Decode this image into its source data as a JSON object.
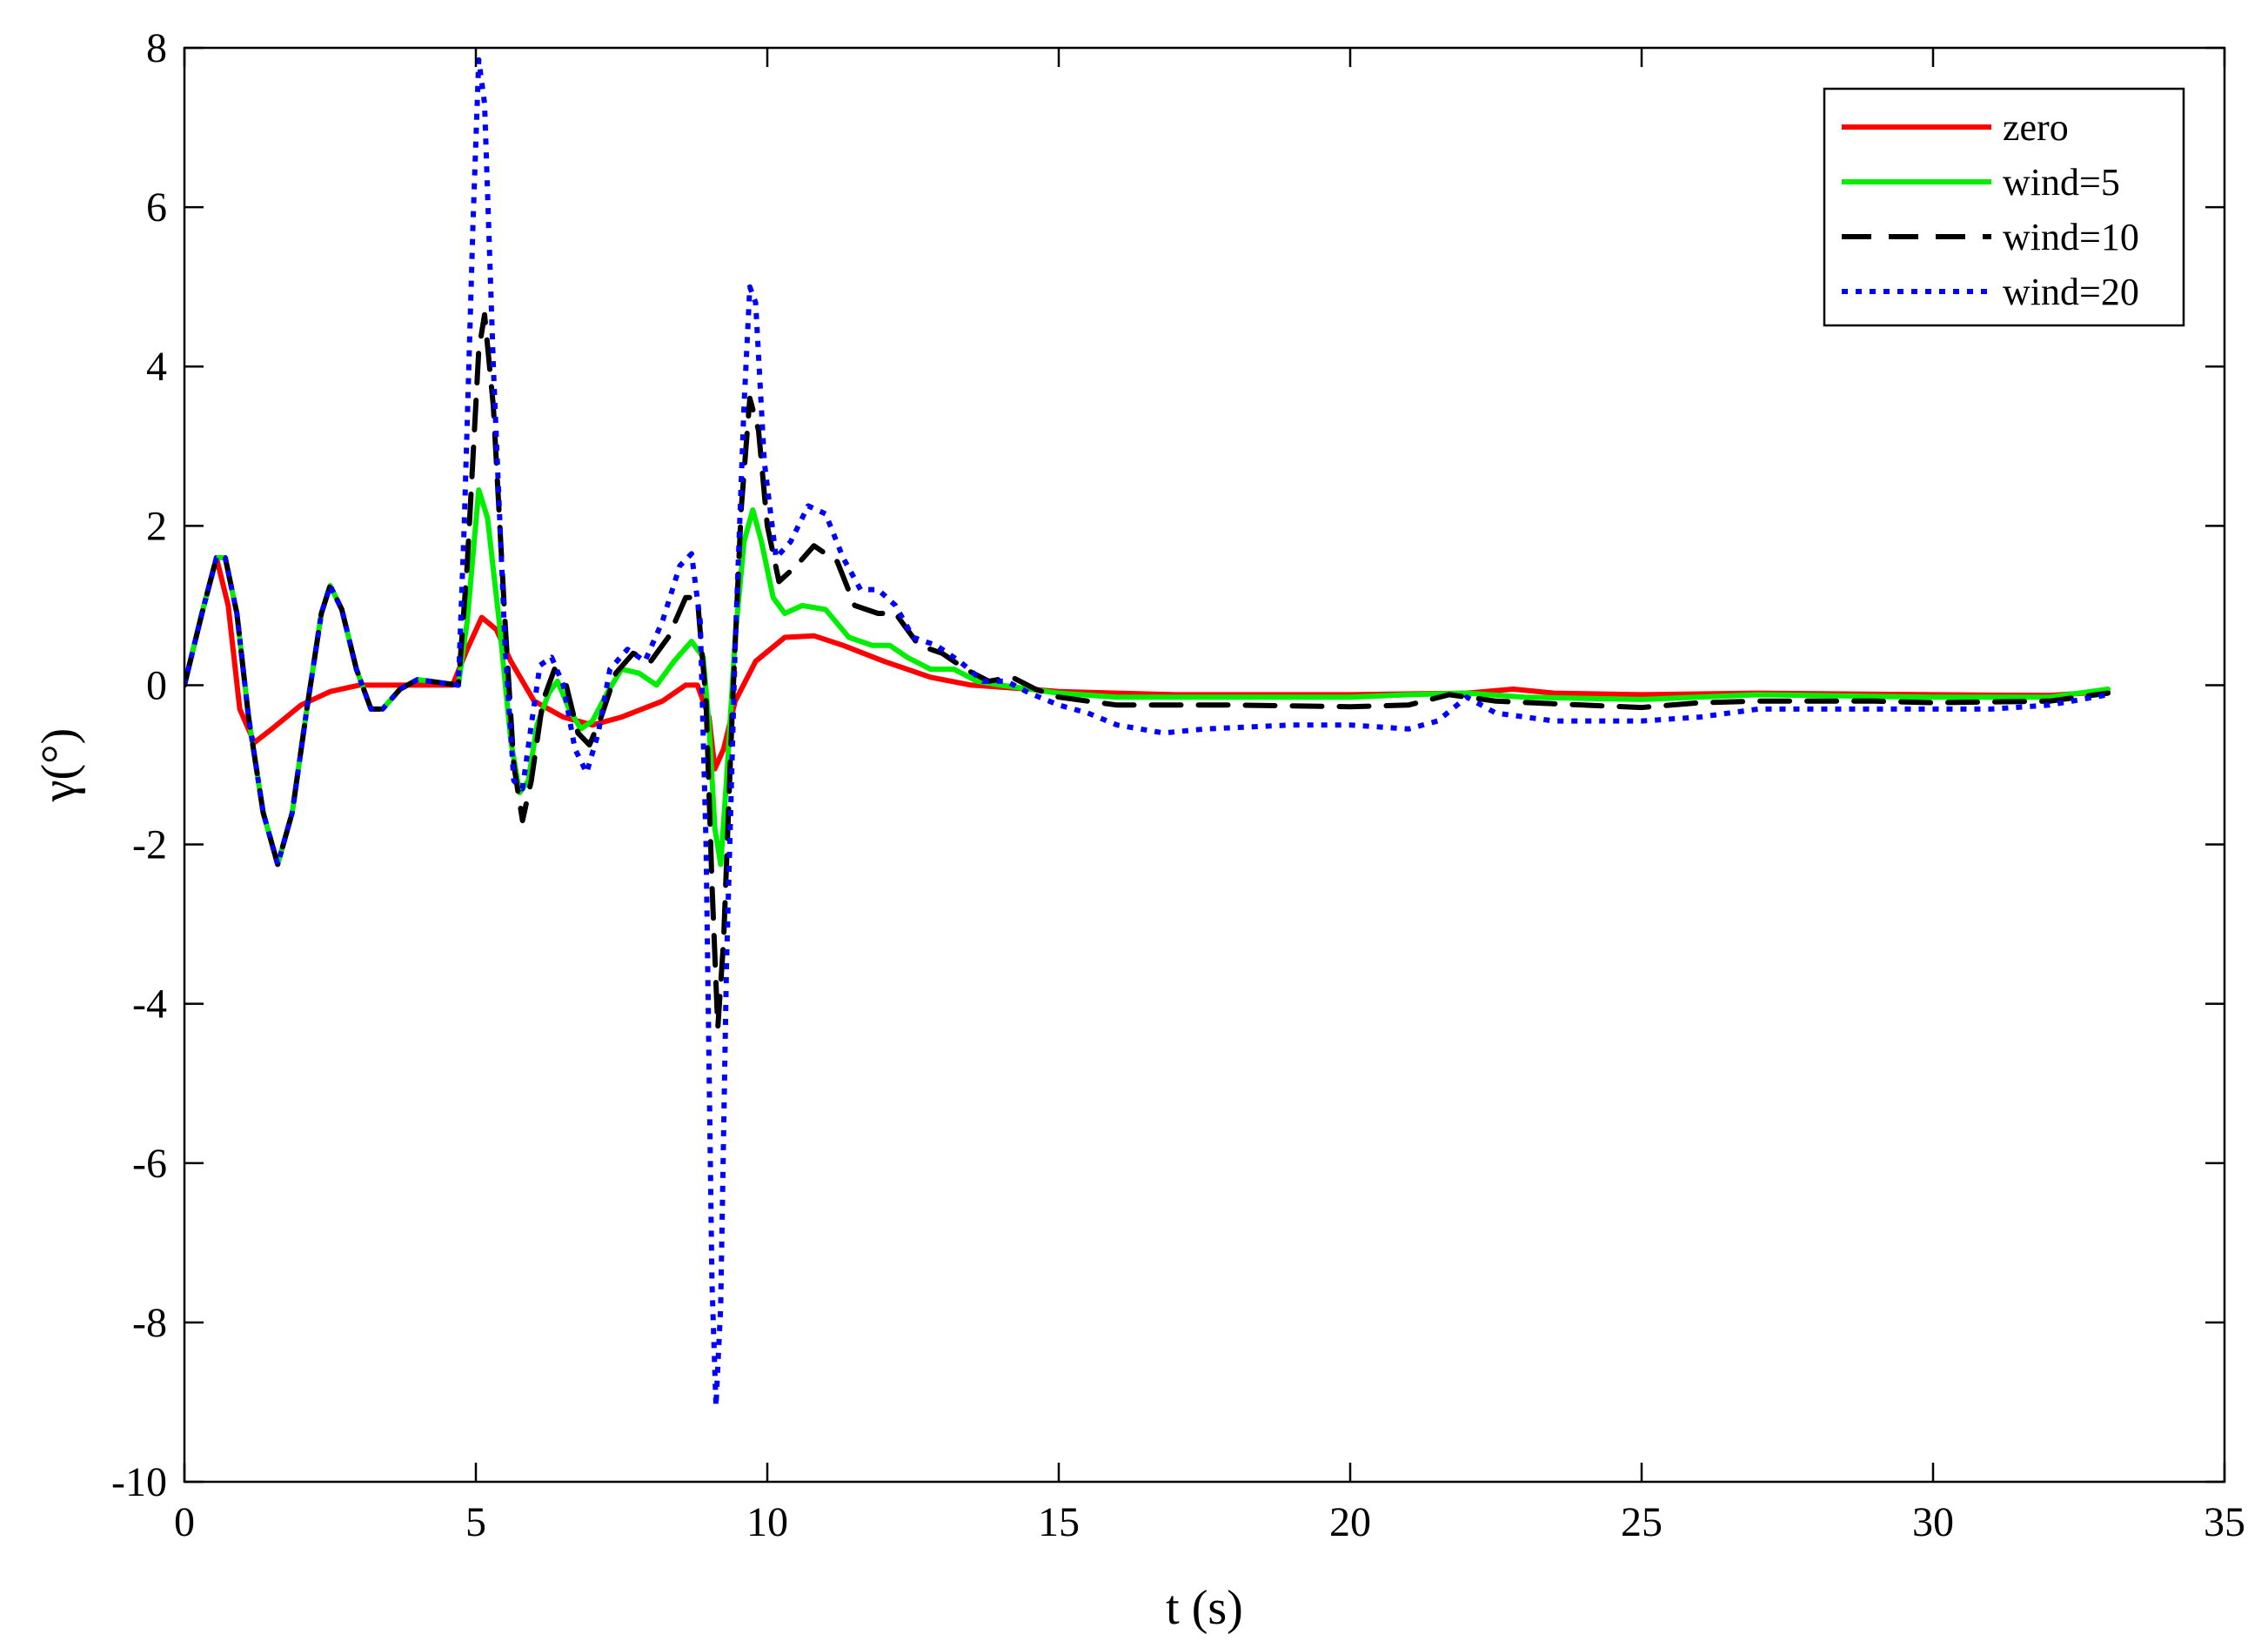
{
  "chart_data": {
    "type": "line",
    "title": "",
    "xlabel": "t (s)",
    "ylabel": "γ(°)",
    "xlim": [
      0,
      35
    ],
    "ylim": [
      -10,
      8
    ],
    "xticks": [
      0,
      5,
      10,
      15,
      20,
      25,
      30,
      35
    ],
    "yticks": [
      -10,
      -8,
      -6,
      -4,
      -2,
      0,
      2,
      4,
      6,
      8
    ],
    "grid": false,
    "legend_position": "top-right",
    "series": [
      {
        "name": "zero",
        "color": "#ff0000",
        "style": "solid",
        "points": [
          [
            0,
            0
          ],
          [
            0.3,
            0.9
          ],
          [
            0.55,
            1.6
          ],
          [
            0.75,
            1.0
          ],
          [
            0.95,
            -0.3
          ],
          [
            1.2,
            -0.72
          ],
          [
            1.5,
            -0.55
          ],
          [
            2.0,
            -0.25
          ],
          [
            2.5,
            -0.08
          ],
          [
            3.0,
            0.0
          ],
          [
            4.0,
            0.0
          ],
          [
            4.6,
            0.0
          ],
          [
            4.85,
            0.45
          ],
          [
            5.1,
            0.85
          ],
          [
            5.35,
            0.7
          ],
          [
            5.6,
            0.3
          ],
          [
            6.0,
            -0.2
          ],
          [
            6.5,
            -0.4
          ],
          [
            7.0,
            -0.5
          ],
          [
            7.5,
            -0.4
          ],
          [
            8.2,
            -0.2
          ],
          [
            8.6,
            0.0
          ],
          [
            8.8,
            0.0
          ],
          [
            9.0,
            -0.4
          ],
          [
            9.1,
            -1.05
          ],
          [
            9.25,
            -0.8
          ],
          [
            9.45,
            -0.2
          ],
          [
            9.8,
            0.3
          ],
          [
            10.3,
            0.6
          ],
          [
            10.8,
            0.62
          ],
          [
            11.3,
            0.5
          ],
          [
            12.0,
            0.3
          ],
          [
            12.8,
            0.1
          ],
          [
            13.5,
            0.0
          ],
          [
            14.5,
            -0.05
          ],
          [
            15,
            -0.08
          ],
          [
            17,
            -0.12
          ],
          [
            20,
            -0.12
          ],
          [
            22,
            -0.1
          ],
          [
            22.8,
            -0.05
          ],
          [
            23.5,
            -0.1
          ],
          [
            25,
            -0.12
          ],
          [
            27,
            -0.1
          ],
          [
            30,
            -0.12
          ],
          [
            32,
            -0.13
          ],
          [
            33,
            -0.08
          ]
        ]
      },
      {
        "name": "wind=5",
        "color": "#00ee00",
        "style": "solid",
        "points": [
          [
            0,
            0
          ],
          [
            0.3,
            0.9
          ],
          [
            0.55,
            1.6
          ],
          [
            0.7,
            1.6
          ],
          [
            0.9,
            0.9
          ],
          [
            1.1,
            -0.4
          ],
          [
            1.35,
            -1.6
          ],
          [
            1.6,
            -2.25
          ],
          [
            1.85,
            -1.6
          ],
          [
            2.1,
            -0.3
          ],
          [
            2.35,
            0.9
          ],
          [
            2.5,
            1.25
          ],
          [
            2.7,
            0.95
          ],
          [
            2.95,
            0.2
          ],
          [
            3.2,
            -0.3
          ],
          [
            3.4,
            -0.3
          ],
          [
            3.7,
            -0.05
          ],
          [
            4.0,
            0.07
          ],
          [
            4.4,
            0.03
          ],
          [
            4.7,
            0.0
          ],
          [
            4.85,
            0.8
          ],
          [
            5.05,
            2.45
          ],
          [
            5.2,
            2.1
          ],
          [
            5.4,
            0.8
          ],
          [
            5.6,
            -0.7
          ],
          [
            5.75,
            -1.35
          ],
          [
            5.9,
            -1.2
          ],
          [
            6.05,
            -0.5
          ],
          [
            6.25,
            -0.1
          ],
          [
            6.4,
            0.05
          ],
          [
            6.6,
            -0.3
          ],
          [
            6.8,
            -0.55
          ],
          [
            7.0,
            -0.45
          ],
          [
            7.25,
            -0.1
          ],
          [
            7.5,
            0.2
          ],
          [
            7.8,
            0.15
          ],
          [
            8.1,
            0.0
          ],
          [
            8.4,
            0.3
          ],
          [
            8.7,
            0.55
          ],
          [
            8.9,
            0.35
          ],
          [
            9.0,
            -0.5
          ],
          [
            9.1,
            -1.8
          ],
          [
            9.2,
            -2.25
          ],
          [
            9.3,
            -1.2
          ],
          [
            9.45,
            0.6
          ],
          [
            9.6,
            1.8
          ],
          [
            9.75,
            2.2
          ],
          [
            9.9,
            1.8
          ],
          [
            10.1,
            1.1
          ],
          [
            10.3,
            0.9
          ],
          [
            10.6,
            1.0
          ],
          [
            11.0,
            0.95
          ],
          [
            11.4,
            0.6
          ],
          [
            11.8,
            0.5
          ],
          [
            12.1,
            0.5
          ],
          [
            12.4,
            0.35
          ],
          [
            12.8,
            0.2
          ],
          [
            13.2,
            0.2
          ],
          [
            13.6,
            0.05
          ],
          [
            14.0,
            0.0
          ],
          [
            14.5,
            -0.05
          ],
          [
            15,
            -0.1
          ],
          [
            16,
            -0.15
          ],
          [
            18,
            -0.15
          ],
          [
            20,
            -0.15
          ],
          [
            21,
            -0.12
          ],
          [
            22,
            -0.1
          ],
          [
            23,
            -0.15
          ],
          [
            25,
            -0.18
          ],
          [
            27,
            -0.12
          ],
          [
            30,
            -0.15
          ],
          [
            32,
            -0.15
          ],
          [
            33,
            -0.05
          ]
        ]
      },
      {
        "name": "wind=10",
        "color": "#000000",
        "style": "dashed",
        "points": [
          [
            0,
            0
          ],
          [
            0.3,
            0.9
          ],
          [
            0.55,
            1.6
          ],
          [
            0.7,
            1.6
          ],
          [
            0.9,
            0.9
          ],
          [
            1.1,
            -0.4
          ],
          [
            1.35,
            -1.6
          ],
          [
            1.6,
            -2.25
          ],
          [
            1.85,
            -1.6
          ],
          [
            2.1,
            -0.3
          ],
          [
            2.35,
            0.9
          ],
          [
            2.5,
            1.25
          ],
          [
            2.7,
            0.95
          ],
          [
            2.95,
            0.2
          ],
          [
            3.2,
            -0.3
          ],
          [
            3.4,
            -0.3
          ],
          [
            3.7,
            -0.05
          ],
          [
            4.0,
            0.07
          ],
          [
            4.4,
            0.03
          ],
          [
            4.7,
            0.0
          ],
          [
            4.85,
            1.5
          ],
          [
            5.05,
            4.2
          ],
          [
            5.15,
            4.65
          ],
          [
            5.3,
            3.5
          ],
          [
            5.5,
            0.8
          ],
          [
            5.65,
            -1.0
          ],
          [
            5.8,
            -1.7
          ],
          [
            5.95,
            -1.2
          ],
          [
            6.15,
            -0.2
          ],
          [
            6.35,
            0.2
          ],
          [
            6.55,
            0.0
          ],
          [
            6.75,
            -0.6
          ],
          [
            6.95,
            -0.75
          ],
          [
            7.15,
            -0.4
          ],
          [
            7.4,
            0.15
          ],
          [
            7.7,
            0.4
          ],
          [
            8.0,
            0.3
          ],
          [
            8.3,
            0.6
          ],
          [
            8.6,
            1.1
          ],
          [
            8.8,
            1.1
          ],
          [
            8.95,
            -0.2
          ],
          [
            9.05,
            -2.5
          ],
          [
            9.15,
            -4.3
          ],
          [
            9.25,
            -3.2
          ],
          [
            9.4,
            -0.3
          ],
          [
            9.55,
            2.2
          ],
          [
            9.7,
            3.6
          ],
          [
            9.85,
            3.2
          ],
          [
            10.0,
            2.0
          ],
          [
            10.2,
            1.3
          ],
          [
            10.5,
            1.5
          ],
          [
            10.8,
            1.75
          ],
          [
            11.2,
            1.55
          ],
          [
            11.5,
            1.0
          ],
          [
            11.9,
            0.9
          ],
          [
            12.2,
            0.9
          ],
          [
            12.6,
            0.5
          ],
          [
            13.0,
            0.4
          ],
          [
            13.4,
            0.2
          ],
          [
            13.8,
            0.05
          ],
          [
            14.2,
            0.1
          ],
          [
            14.6,
            -0.05
          ],
          [
            15,
            -0.15
          ],
          [
            15.5,
            -0.2
          ],
          [
            16,
            -0.25
          ],
          [
            18,
            -0.25
          ],
          [
            20,
            -0.27
          ],
          [
            21,
            -0.25
          ],
          [
            21.7,
            -0.12
          ],
          [
            22.5,
            -0.2
          ],
          [
            24,
            -0.25
          ],
          [
            25,
            -0.28
          ],
          [
            26,
            -0.22
          ],
          [
            27,
            -0.2
          ],
          [
            29,
            -0.2
          ],
          [
            30,
            -0.22
          ],
          [
            32,
            -0.2
          ],
          [
            33,
            -0.1
          ]
        ]
      },
      {
        "name": "wind=20",
        "color": "#0000ff",
        "style": "dotted",
        "points": [
          [
            0,
            0
          ],
          [
            0.3,
            0.9
          ],
          [
            0.55,
            1.6
          ],
          [
            0.7,
            1.6
          ],
          [
            0.9,
            0.9
          ],
          [
            1.1,
            -0.4
          ],
          [
            1.35,
            -1.6
          ],
          [
            1.6,
            -2.25
          ],
          [
            1.85,
            -1.6
          ],
          [
            2.1,
            -0.3
          ],
          [
            2.35,
            0.9
          ],
          [
            2.5,
            1.25
          ],
          [
            2.7,
            0.95
          ],
          [
            2.95,
            0.2
          ],
          [
            3.2,
            -0.3
          ],
          [
            3.4,
            -0.3
          ],
          [
            3.7,
            -0.05
          ],
          [
            4.0,
            0.07
          ],
          [
            4.4,
            0.03
          ],
          [
            4.7,
            0.0
          ],
          [
            4.8,
            2.0
          ],
          [
            4.95,
            5.8
          ],
          [
            5.05,
            7.85
          ],
          [
            5.15,
            7.3
          ],
          [
            5.3,
            4.0
          ],
          [
            5.5,
            0.5
          ],
          [
            5.65,
            -1.2
          ],
          [
            5.8,
            -1.3
          ],
          [
            5.95,
            -0.5
          ],
          [
            6.1,
            0.25
          ],
          [
            6.3,
            0.35
          ],
          [
            6.5,
            0.0
          ],
          [
            6.7,
            -0.8
          ],
          [
            6.9,
            -1.1
          ],
          [
            7.1,
            -0.6
          ],
          [
            7.3,
            0.2
          ],
          [
            7.6,
            0.45
          ],
          [
            7.9,
            0.3
          ],
          [
            8.2,
            0.8
          ],
          [
            8.5,
            1.5
          ],
          [
            8.7,
            1.65
          ],
          [
            8.85,
            0.8
          ],
          [
            8.95,
            -2.0
          ],
          [
            9.05,
            -7.5
          ],
          [
            9.12,
            -9.05
          ],
          [
            9.2,
            -7.8
          ],
          [
            9.3,
            -3.5
          ],
          [
            9.45,
            0.5
          ],
          [
            9.6,
            3.5
          ],
          [
            9.7,
            5.0
          ],
          [
            9.8,
            4.8
          ],
          [
            9.95,
            2.8
          ],
          [
            10.15,
            1.6
          ],
          [
            10.4,
            1.8
          ],
          [
            10.7,
            2.25
          ],
          [
            11.0,
            2.15
          ],
          [
            11.3,
            1.6
          ],
          [
            11.6,
            1.2
          ],
          [
            11.9,
            1.2
          ],
          [
            12.2,
            1.0
          ],
          [
            12.5,
            0.6
          ],
          [
            12.9,
            0.5
          ],
          [
            13.3,
            0.3
          ],
          [
            13.7,
            0.05
          ],
          [
            14.1,
            0.05
          ],
          [
            14.5,
            -0.1
          ],
          [
            15,
            -0.25
          ],
          [
            15.5,
            -0.35
          ],
          [
            16,
            -0.5
          ],
          [
            16.8,
            -0.6
          ],
          [
            17.5,
            -0.55
          ],
          [
            19,
            -0.5
          ],
          [
            20,
            -0.5
          ],
          [
            21,
            -0.55
          ],
          [
            21.5,
            -0.45
          ],
          [
            22,
            -0.15
          ],
          [
            22.5,
            -0.35
          ],
          [
            23.5,
            -0.45
          ],
          [
            25,
            -0.45
          ],
          [
            26,
            -0.4
          ],
          [
            27,
            -0.3
          ],
          [
            28,
            -0.3
          ],
          [
            30,
            -0.3
          ],
          [
            31,
            -0.3
          ],
          [
            32,
            -0.25
          ],
          [
            33,
            -0.12
          ]
        ]
      }
    ]
  }
}
